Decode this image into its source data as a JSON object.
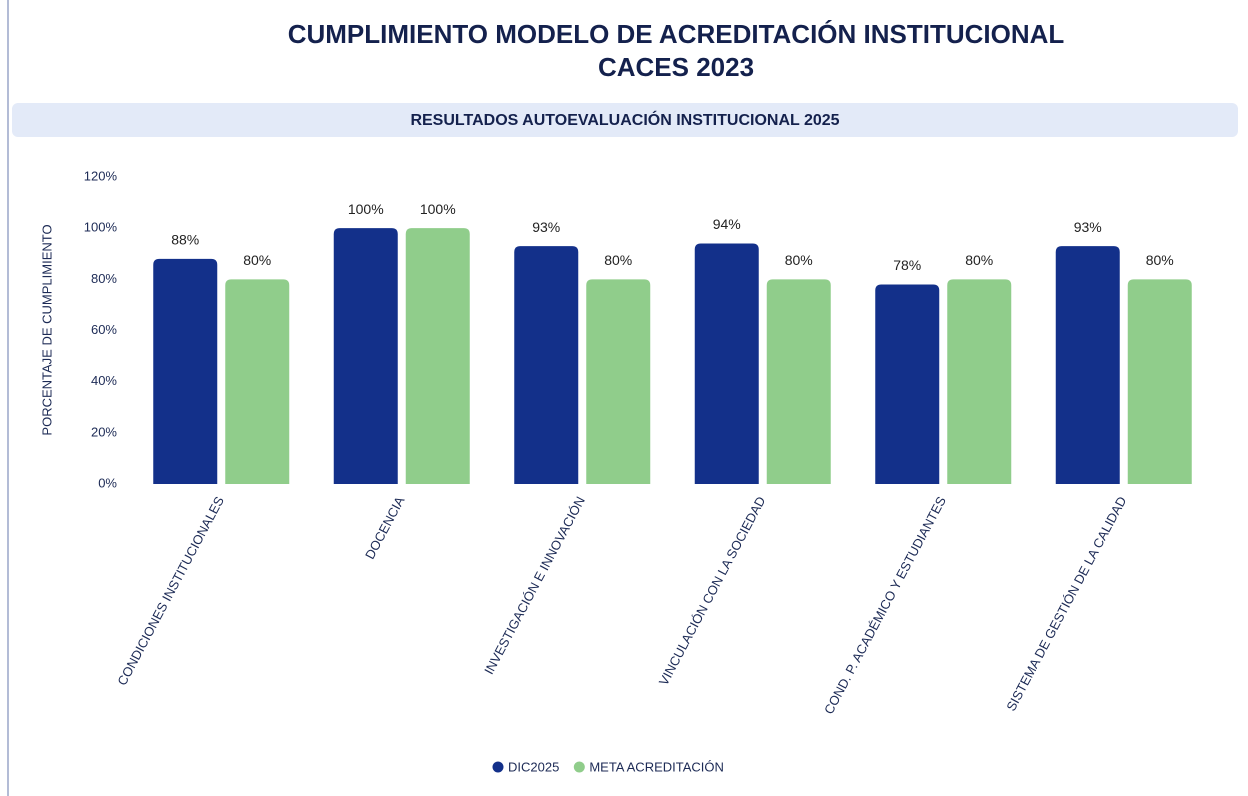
{
  "chart_data": {
    "type": "bar",
    "title": [
      "CUMPLIMIENTO MODELO DE ACREDITACIÓN INSTITUCIONAL",
      "CACES 2023"
    ],
    "subtitle": "RESULTADOS AUTOEVALUACIÓN INSTITUCIONAL 2025",
    "y_label": "PORCENTAJE DE CUMPLIMIENTO",
    "categories": [
      "CONDICIONES INSTITUCIONALES",
      "DOCENCIA",
      "INVESTIGACIÓN E INNOVACIÓN",
      "VINCULACIÓN CON LA SOCIEDAD",
      "COND. P. ACADÉMICO Y ESTUDIANTES",
      "SISTEMA DE GESTIÓN DE LA CALIDAD"
    ],
    "series": [
      {
        "name": "DIC2025",
        "color": "#13308a",
        "values": [
          88,
          100,
          93,
          94,
          78,
          93
        ],
        "value_labels": [
          "88%",
          "100%",
          "93%",
          "94%",
          "78%",
          "93%"
        ]
      },
      {
        "name": "META ACREDITACIÓN",
        "color": "#90cd8b",
        "values": [
          80,
          100,
          80,
          80,
          80,
          80
        ],
        "value_labels": [
          "80%",
          "100%",
          "80%",
          "80%",
          "80%",
          "80%"
        ]
      }
    ],
    "ylim": [
      0,
      120
    ],
    "yticks": [
      {
        "value": 0,
        "label": "0%"
      },
      {
        "value": 20,
        "label": "20%"
      },
      {
        "value": 40,
        "label": "40%"
      },
      {
        "value": 60,
        "label": "60%"
      },
      {
        "value": 80,
        "label": "80%"
      },
      {
        "value": 100,
        "label": "100%"
      },
      {
        "value": 120,
        "label": "120%"
      }
    ],
    "legend": "bottom"
  }
}
